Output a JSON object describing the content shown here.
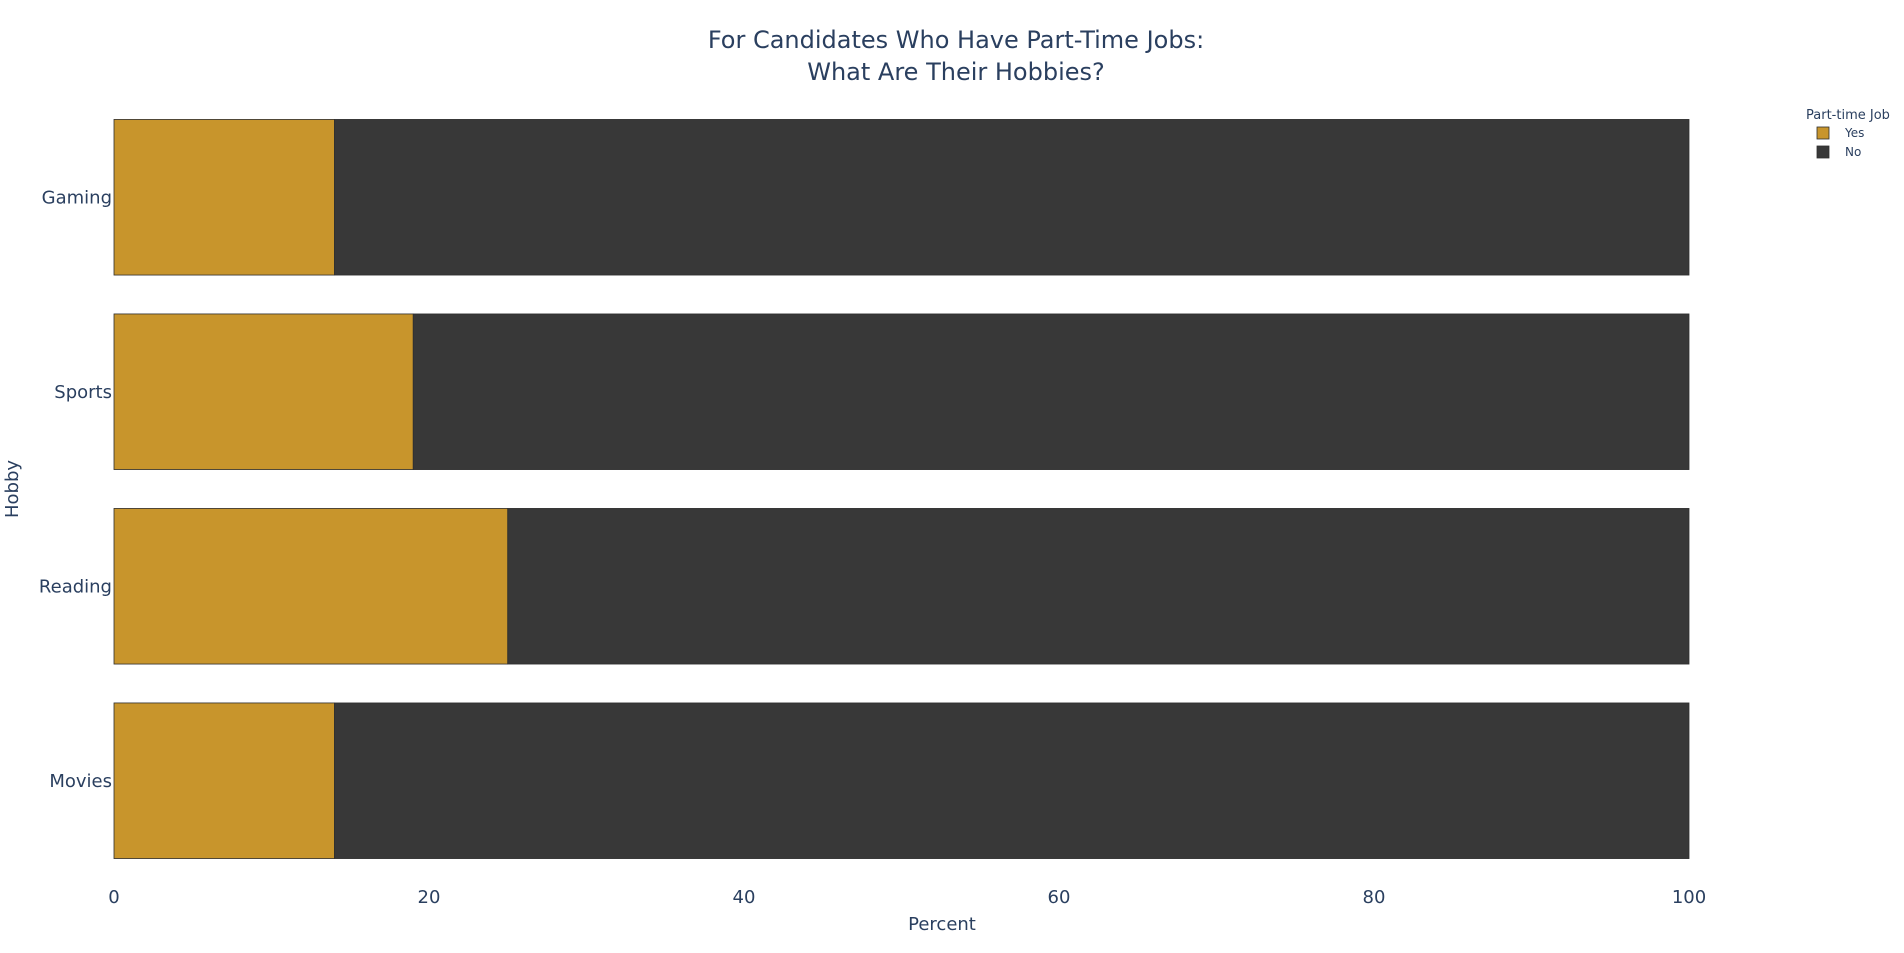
{
  "chart_data": {
    "type": "bar",
    "orientation": "horizontal",
    "barmode": "stack",
    "title": [
      "For Candidates Who Have Part-Time Jobs:",
      "What Are Their Hobbies?"
    ],
    "xlabel": "Percent",
    "ylabel": "Hobby",
    "xlim": [
      0,
      100
    ],
    "xticks": [
      0,
      20,
      40,
      60,
      80,
      100
    ],
    "categories": [
      "Gaming",
      "Sports",
      "Reading",
      "Movies"
    ],
    "series": [
      {
        "name": "Yes",
        "color": "#c8952c",
        "values": [
          14,
          19,
          25,
          14
        ]
      },
      {
        "name": "No",
        "color": "#383838",
        "values": [
          86,
          81,
          75,
          86
        ]
      }
    ],
    "legend": {
      "title": "Part-time Job",
      "placement": "top-right"
    },
    "grid": false
  }
}
